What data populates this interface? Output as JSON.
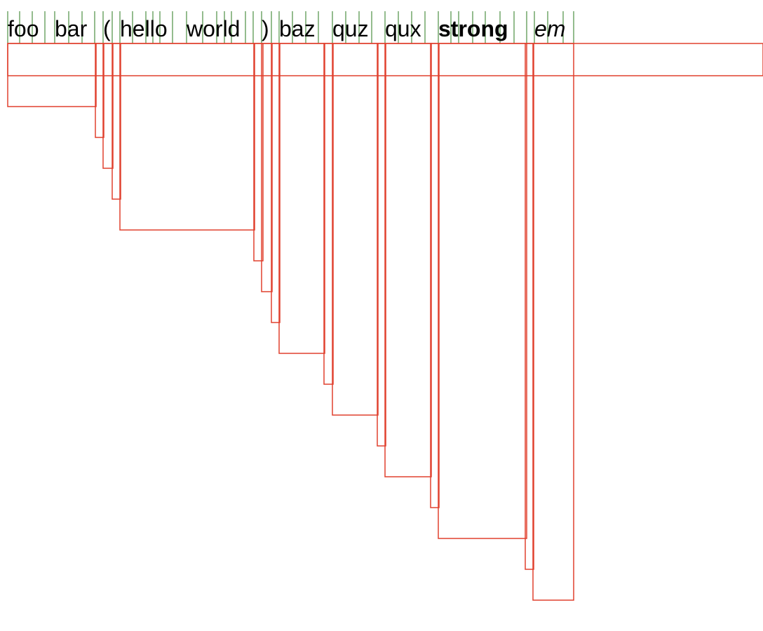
{
  "tokens": [
    {
      "text": "foo",
      "style": "normal"
    },
    {
      "text": "bar",
      "style": "normal"
    },
    {
      "text": "(",
      "style": "normal"
    },
    {
      "text": "hello",
      "style": "normal"
    },
    {
      "text": "world",
      "style": "normal"
    },
    {
      "text": ")",
      "style": "normal"
    },
    {
      "text": "baz",
      "style": "normal"
    },
    {
      "text": "quz",
      "style": "normal"
    },
    {
      "text": "qux",
      "style": "normal"
    },
    {
      "text": "strong",
      "style": "bold"
    },
    {
      "text": "em",
      "style": "italic"
    }
  ],
  "colors": {
    "glyph_box": "#2a7a1e",
    "layout_box": "#e0402e",
    "text": "#000000",
    "background": "#ffffff"
  }
}
